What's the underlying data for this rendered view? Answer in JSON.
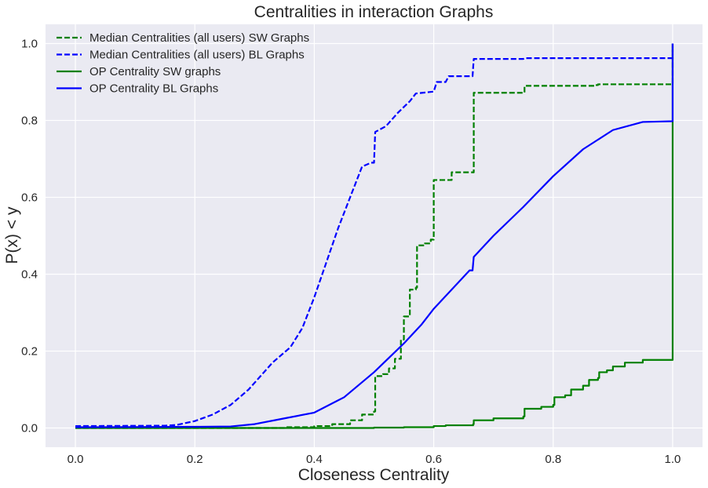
{
  "chart_data": {
    "type": "line",
    "title": "Centralities in interaction Graphs",
    "xlabel": "Closeness Centrality",
    "ylabel": "P(x) < y",
    "xlim": [
      -0.05,
      1.05
    ],
    "ylim": [
      -0.05,
      1.05
    ],
    "xticks": [
      0.0,
      0.2,
      0.4,
      0.6,
      0.8,
      1.0
    ],
    "xtick_labels": [
      "0.0",
      "0.2",
      "0.4",
      "0.6",
      "0.8",
      "1.0"
    ],
    "yticks": [
      0.0,
      0.2,
      0.4,
      0.6,
      0.8,
      1.0
    ],
    "ytick_labels": [
      "0.0",
      "0.2",
      "0.4",
      "0.6",
      "0.8",
      "1.0"
    ],
    "grid": true,
    "legend_position": "top-left",
    "background": "#eaeaf2",
    "series": [
      {
        "name": "Median Centralities (all users) SW Graphs",
        "color": "#008000",
        "style": "dashed",
        "step": true,
        "points": [
          [
            0.0,
            0.0
          ],
          [
            0.3,
            0.0
          ],
          [
            0.35,
            0.002
          ],
          [
            0.4,
            0.005
          ],
          [
            0.43,
            0.01
          ],
          [
            0.46,
            0.02
          ],
          [
            0.48,
            0.035
          ],
          [
            0.5,
            0.043
          ],
          [
            0.502,
            0.135
          ],
          [
            0.515,
            0.14
          ],
          [
            0.525,
            0.155
          ],
          [
            0.535,
            0.18
          ],
          [
            0.545,
            0.23
          ],
          [
            0.55,
            0.29
          ],
          [
            0.56,
            0.36
          ],
          [
            0.57,
            0.365
          ],
          [
            0.572,
            0.475
          ],
          [
            0.585,
            0.48
          ],
          [
            0.595,
            0.49
          ],
          [
            0.6,
            0.645
          ],
          [
            0.625,
            0.645
          ],
          [
            0.63,
            0.665
          ],
          [
            0.665,
            0.665
          ],
          [
            0.667,
            0.872
          ],
          [
            0.75,
            0.873
          ],
          [
            0.752,
            0.89
          ],
          [
            0.87,
            0.892
          ],
          [
            0.875,
            0.894
          ],
          [
            1.0,
            0.894
          ],
          [
            1.0,
            1.0
          ]
        ]
      },
      {
        "name": "Median Centralities (all users) BL Graphs",
        "color": "#0000ff",
        "style": "dashed",
        "step": false,
        "points": [
          [
            0.0,
            0.005
          ],
          [
            0.15,
            0.006
          ],
          [
            0.17,
            0.008
          ],
          [
            0.2,
            0.018
          ],
          [
            0.23,
            0.035
          ],
          [
            0.26,
            0.06
          ],
          [
            0.29,
            0.1
          ],
          [
            0.31,
            0.135
          ],
          [
            0.33,
            0.17
          ],
          [
            0.36,
            0.21
          ],
          [
            0.38,
            0.26
          ],
          [
            0.4,
            0.34
          ],
          [
            0.42,
            0.43
          ],
          [
            0.44,
            0.52
          ],
          [
            0.46,
            0.6
          ],
          [
            0.48,
            0.68
          ],
          [
            0.495,
            0.69
          ],
          [
            0.5,
            0.69
          ],
          [
            0.502,
            0.77
          ],
          [
            0.52,
            0.785
          ],
          [
            0.54,
            0.82
          ],
          [
            0.56,
            0.85
          ],
          [
            0.57,
            0.87
          ],
          [
            0.6,
            0.875
          ],
          [
            0.605,
            0.9
          ],
          [
            0.62,
            0.9
          ],
          [
            0.625,
            0.915
          ],
          [
            0.665,
            0.915
          ],
          [
            0.667,
            0.96
          ],
          [
            0.75,
            0.96
          ],
          [
            0.752,
            0.962
          ],
          [
            1.0,
            0.962
          ],
          [
            1.0,
            1.0
          ]
        ]
      },
      {
        "name": "OP Centrality SW graphs",
        "color": "#008000",
        "style": "solid",
        "step": true,
        "points": [
          [
            0.0,
            0.0
          ],
          [
            0.45,
            0.0
          ],
          [
            0.5,
            0.001
          ],
          [
            0.55,
            0.002
          ],
          [
            0.6,
            0.005
          ],
          [
            0.62,
            0.007
          ],
          [
            0.666,
            0.01
          ],
          [
            0.667,
            0.02
          ],
          [
            0.7,
            0.025
          ],
          [
            0.75,
            0.03
          ],
          [
            0.752,
            0.05
          ],
          [
            0.78,
            0.055
          ],
          [
            0.8,
            0.06
          ],
          [
            0.802,
            0.08
          ],
          [
            0.82,
            0.085
          ],
          [
            0.83,
            0.1
          ],
          [
            0.85,
            0.11
          ],
          [
            0.86,
            0.125
          ],
          [
            0.875,
            0.13
          ],
          [
            0.877,
            0.145
          ],
          [
            0.89,
            0.15
          ],
          [
            0.9,
            0.16
          ],
          [
            0.92,
            0.17
          ],
          [
            0.95,
            0.177
          ],
          [
            1.0,
            0.18
          ],
          [
            1.0,
            1.0
          ]
        ]
      },
      {
        "name": "OP Centrality BL Graphs",
        "color": "#0000ff",
        "style": "solid",
        "step": false,
        "points": [
          [
            0.0,
            0.002
          ],
          [
            0.2,
            0.003
          ],
          [
            0.26,
            0.004
          ],
          [
            0.3,
            0.01
          ],
          [
            0.35,
            0.025
          ],
          [
            0.4,
            0.04
          ],
          [
            0.45,
            0.08
          ],
          [
            0.5,
            0.145
          ],
          [
            0.55,
            0.22
          ],
          [
            0.58,
            0.27
          ],
          [
            0.6,
            0.31
          ],
          [
            0.63,
            0.36
          ],
          [
            0.66,
            0.41
          ],
          [
            0.665,
            0.41
          ],
          [
            0.667,
            0.445
          ],
          [
            0.7,
            0.5
          ],
          [
            0.75,
            0.575
          ],
          [
            0.8,
            0.655
          ],
          [
            0.85,
            0.725
          ],
          [
            0.9,
            0.775
          ],
          [
            0.95,
            0.796
          ],
          [
            1.0,
            0.798
          ],
          [
            1.0,
            1.0
          ]
        ]
      }
    ]
  }
}
